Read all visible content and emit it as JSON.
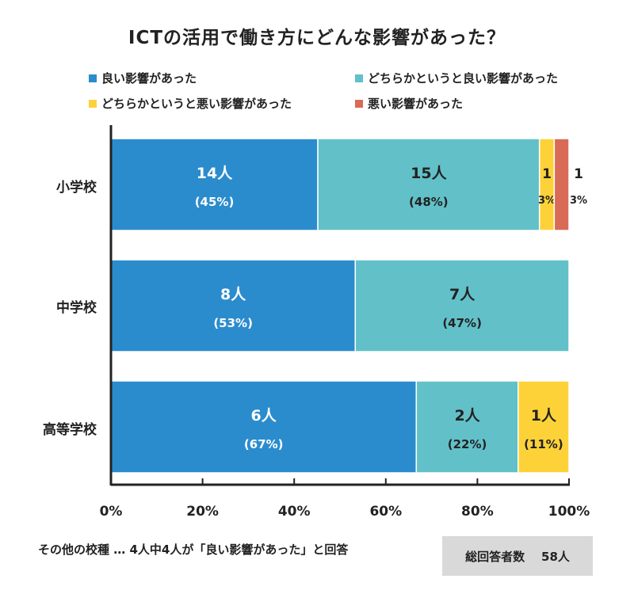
{
  "title": "ICTの活用で働き方にどんな影響があった？",
  "footer": {
    "note": "その他の校種 … 4人中4人が「良い影響があった」と回答",
    "total_label": "総回答者数",
    "total_value": "58人"
  },
  "chart_data": {
    "type": "bar",
    "orientation": "horizontal",
    "stacked": true,
    "percent_stacked": true,
    "categories": [
      "小学校",
      "中学校",
      "高等学校"
    ],
    "series": [
      {
        "name": "良い影響があった",
        "color": "#2b8ccd",
        "counts": [
          14,
          8,
          6
        ],
        "percents": [
          45,
          53,
          67
        ],
        "labels": [
          "14人",
          "8人",
          "6人"
        ],
        "pct_labels": [
          "(45%)",
          "(53%)",
          "(67%)"
        ]
      },
      {
        "name": "どちらかというと良い影響があった",
        "color": "#62c0c8",
        "counts": [
          15,
          7,
          2
        ],
        "percents": [
          48,
          47,
          22
        ],
        "labels": [
          "15人",
          "7人",
          "2人"
        ],
        "pct_labels": [
          "(48%)",
          "(47%)",
          "(22%)"
        ]
      },
      {
        "name": "どちらかというと悪い影響があった",
        "color": "#fdd239",
        "counts": [
          1,
          0,
          1
        ],
        "percents": [
          3,
          0,
          11
        ],
        "labels": [
          "1",
          "",
          "1人"
        ],
        "pct_labels": [
          "3%",
          "",
          "(11%)"
        ]
      },
      {
        "name": "悪い影響があった",
        "color": "#d96a55",
        "counts": [
          1,
          0,
          0
        ],
        "percents": [
          3,
          0,
          0
        ],
        "labels": [
          "1",
          "",
          ""
        ],
        "pct_labels": [
          "3%",
          "",
          ""
        ]
      }
    ],
    "xlim": [
      0,
      100
    ],
    "xticks": [
      "0%",
      "20%",
      "40%",
      "60%",
      "80%",
      "100%"
    ],
    "legend_position": "top",
    "grid": false
  }
}
